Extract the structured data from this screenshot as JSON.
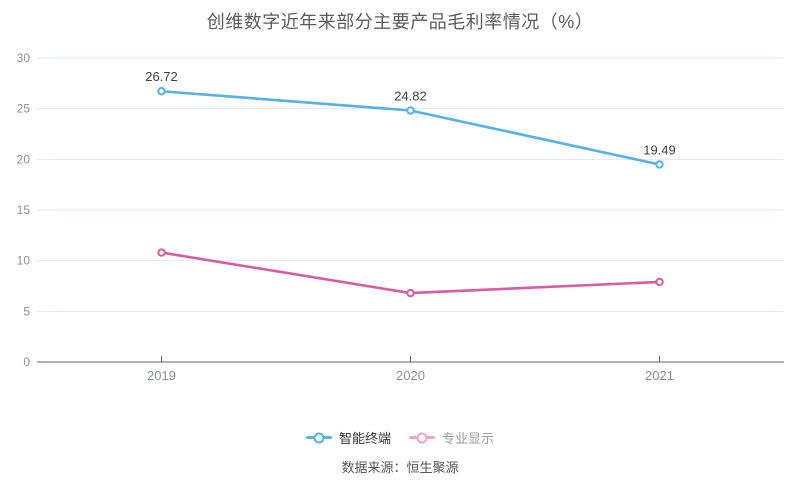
{
  "title": "创维数字近年来部分主要产品毛利率情况（%）",
  "source": "数据来源：恒生聚源",
  "chart_data": {
    "type": "line",
    "categories": [
      "2019",
      "2020",
      "2021"
    ],
    "series": [
      {
        "name": "智能终端",
        "values": [
          26.72,
          24.82,
          19.49
        ],
        "labels": [
          "26.72",
          "24.82",
          "19.49"
        ],
        "color": "#55b1e8",
        "legend_marker_color": "#55b1e8",
        "legend_text_color": "#333333"
      },
      {
        "name": "专业显示",
        "values": [
          10.8,
          6.8,
          7.9
        ],
        "labels": [],
        "color": "#d85ca3",
        "legend_marker_color": "#f3a4ca",
        "legend_text_color": "#9b9b9b"
      }
    ],
    "title": "创维数字近年来部分主要产品毛利率情况（%）",
    "xlabel": "",
    "ylabel": "",
    "ylim": [
      0,
      30
    ],
    "yticks": [
      0,
      5,
      10,
      15,
      20,
      25,
      30
    ],
    "grid": true,
    "legend_position": "bottom"
  },
  "style": {
    "grid_color": "#e2e7f1",
    "axis_color": "#60646c",
    "tick_label_color": "#8a8f99",
    "value_label_color": "#404040",
    "background": "#ffffff"
  }
}
